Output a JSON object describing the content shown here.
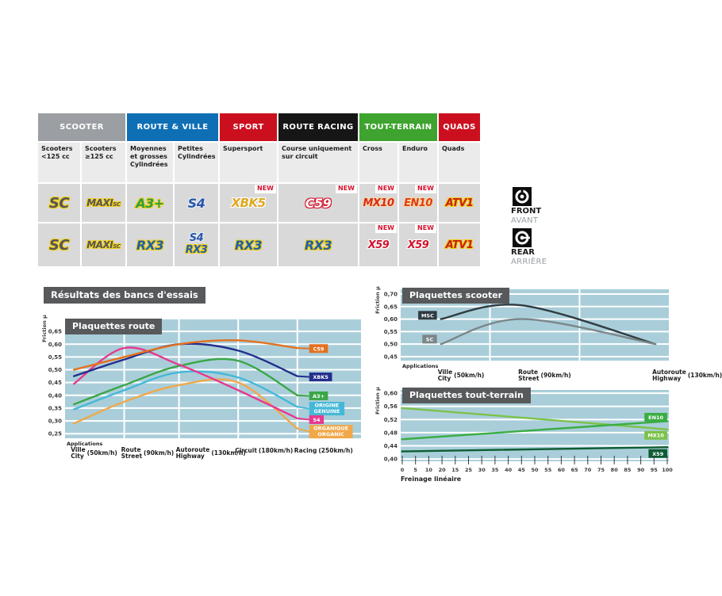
{
  "section_title": "Résultats des bancs d'essais",
  "table": {
    "new_label": "NEW",
    "groups": [
      {
        "label": "SCOOTER",
        "color": "#9b9ea3",
        "span": 2
      },
      {
        "label": "ROUTE & VILLE",
        "color": "#0e6fb5",
        "span": 2
      },
      {
        "label": "SPORT",
        "color": "#cc0f1e",
        "span": 1
      },
      {
        "label": "ROUTE RACING",
        "color": "#161616",
        "span": 1
      },
      {
        "label": "TOUT-TERRAIN",
        "color": "#3ea32f",
        "span": 2
      },
      {
        "label": "QUADS",
        "color": "#cc0f1e",
        "span": 1
      }
    ],
    "subheaders": [
      "Scooters <125 cc",
      "Scooters ≥125 cc",
      "Moyennes et grosses Cylindrées",
      "Petites Cylindrées",
      "Supersport",
      "Course uniquement sur circuit",
      "Cross",
      "Enduro",
      "Quads"
    ],
    "front_row": [
      {
        "badges": [
          {
            "text": "SC",
            "style": "sc"
          }
        ],
        "new": false
      },
      {
        "badges": [
          {
            "text": "MAXI",
            "sub": "SC",
            "style": "maxisc"
          }
        ],
        "new": false
      },
      {
        "badges": [
          {
            "text": "A3+",
            "style": "a3"
          }
        ],
        "new": false
      },
      {
        "badges": [
          {
            "text": "S4",
            "style": "s4"
          }
        ],
        "new": false
      },
      {
        "badges": [
          {
            "text": "XBK5",
            "style": "xbk5"
          }
        ],
        "new": true
      },
      {
        "badges": [
          {
            "text": "C59",
            "style": "c59"
          }
        ],
        "new": true
      },
      {
        "badges": [
          {
            "text": "MX10",
            "style": "mx10"
          }
        ],
        "new": true
      },
      {
        "badges": [
          {
            "text": "EN10",
            "style": "en10"
          }
        ],
        "new": true
      },
      {
        "badges": [
          {
            "text": "ATV1",
            "style": "atv1"
          }
        ],
        "new": false
      }
    ],
    "rear_row": [
      {
        "badges": [
          {
            "text": "SC",
            "style": "sc"
          }
        ],
        "new": false
      },
      {
        "badges": [
          {
            "text": "MAXI",
            "sub": "SC",
            "style": "maxisc"
          }
        ],
        "new": false
      },
      {
        "badges": [
          {
            "text": "RX3",
            "style": "rx3"
          }
        ],
        "new": false
      },
      {
        "badges": [
          {
            "text": "S4",
            "style": "s4s"
          },
          {
            "text": "RX3",
            "style": "rx3s"
          }
        ],
        "new": false
      },
      {
        "badges": [
          {
            "text": "RX3",
            "style": "rx3"
          }
        ],
        "new": false
      },
      {
        "badges": [
          {
            "text": "RX3",
            "style": "rx3"
          }
        ],
        "new": false
      },
      {
        "badges": [
          {
            "text": "X59",
            "style": "x59"
          }
        ],
        "new": true
      },
      {
        "badges": [
          {
            "text": "X59",
            "style": "x59"
          }
        ],
        "new": true
      },
      {
        "badges": [
          {
            "text": "ATV1",
            "style": "atv1"
          }
        ],
        "new": false
      }
    ],
    "front_icon": {
      "label": "FRONT",
      "caption": "AVANT"
    },
    "rear_icon": {
      "label": "REAR",
      "caption": "ARRIÈRE"
    }
  },
  "chart_data": [
    {
      "id": "route",
      "type": "line",
      "title": "Plaquettes route",
      "ylabel": "Friction µ",
      "yticks": [
        "0,65",
        "0,60",
        "0,55",
        "0,50",
        "0,45",
        "0,40",
        "0,35",
        "0,30",
        "0,25"
      ],
      "ylim": [
        0.232,
        0.697
      ],
      "x_axis_label": "Applications",
      "categories": [
        {
          "fr": "Ville",
          "en": "City",
          "speed": "(50km/h)"
        },
        {
          "fr": "Route",
          "en": "Street",
          "speed": "(90km/h)"
        },
        {
          "fr": "Autoroute",
          "en": "Highway",
          "speed": "(130km/h)"
        },
        {
          "fr": "Circuit",
          "en": "",
          "speed": "(180km/h)"
        },
        {
          "fr": "Racing",
          "en": "",
          "speed": "(250km/h)"
        }
      ],
      "plot_bg": "#a9ced9",
      "series": [
        {
          "name": "ORGANIQUE",
          "label_lines": [
            "ORGANIQUE",
            "ORGANIC"
          ],
          "color": "#f0a84b",
          "values": [
            0.29,
            0.375,
            0.44,
            0.45,
            0.27
          ],
          "label_y": 0.258
        },
        {
          "name": "ORIGINE",
          "label_lines": [
            "ORIGINE",
            "GENUINE"
          ],
          "color": "#45b8d8",
          "values": [
            0.345,
            0.42,
            0.49,
            0.47,
            0.355
          ],
          "label_y": 0.348
        },
        {
          "name": "A3+",
          "label_lines": [
            "A3+"
          ],
          "color": "#3aa648",
          "values": [
            0.365,
            0.44,
            0.515,
            0.535,
            0.4
          ],
          "label_y": 0.398
        },
        {
          "name": "S4",
          "label_lines": [
            "S4"
          ],
          "color": "#e6398f",
          "values": [
            0.445,
            0.585,
            0.52,
            0.42,
            0.31
          ],
          "label_y": 0.305
        },
        {
          "name": "XBK5",
          "label_lines": [
            "XBK5"
          ],
          "color": "#232e8d",
          "values": [
            0.475,
            0.54,
            0.6,
            0.575,
            0.475
          ],
          "label_y": 0.472
        },
        {
          "name": "C59",
          "label_lines": [
            "C59"
          ],
          "color": "#e4711f",
          "values": [
            0.5,
            0.55,
            0.6,
            0.615,
            0.585
          ],
          "label_y": 0.583
        }
      ]
    },
    {
      "id": "scooter",
      "type": "line",
      "title": "Plaquettes scooter",
      "ylabel": "Friction µ",
      "yticks": [
        "0,70",
        "0,65",
        "0,60",
        "0,55",
        "0,50",
        "0,45"
      ],
      "ylim": [
        0.434,
        0.719
      ],
      "x_axis_label": "Applications",
      "categories": [
        {
          "fr": "Ville",
          "en": "City",
          "speed": "(50km/h)"
        },
        {
          "fr": "Route",
          "en": "Street",
          "speed": "(90km/h)"
        },
        {
          "fr": "Autoroute",
          "en": "Highway",
          "speed": "(130km/h)"
        }
      ],
      "plot_bg": "#a9ced9",
      "series": [
        {
          "name": "MSC",
          "label_lines": [
            "MSC"
          ],
          "color": "#2f3b42",
          "values": [
            0.6,
            0.655,
            0.5
          ],
          "label_y": 0.615
        },
        {
          "name": "SC",
          "label_lines": [
            "SC"
          ],
          "color": "#7b8689",
          "values": [
            0.5,
            0.6,
            0.5
          ],
          "label_y": 0.52
        }
      ]
    },
    {
      "id": "tout-terrain",
      "type": "line",
      "title": "Plaquettes tout-terrain",
      "ylabel": "Friction µ",
      "yticks": [
        "0,60",
        "0,56",
        "0,52",
        "0,48",
        "0,44",
        "0,40"
      ],
      "ylim": [
        0.393,
        0.61
      ],
      "xticks": [
        "0",
        "5",
        "10",
        "20",
        "15",
        "25",
        "30",
        "35",
        "40",
        "45",
        "50",
        "55",
        "60",
        "65",
        "70",
        "75",
        "80",
        "85",
        "90",
        "95",
        "100"
      ],
      "xlabel": "Freinage linéaire",
      "plot_bg": "#a9ced9",
      "series": [
        {
          "name": "MX10",
          "label_lines": [
            "MX10"
          ],
          "color": "#7cc24a",
          "values": [
            0.555,
            0.49
          ],
          "label_y": 0.472
        },
        {
          "name": "EN10",
          "label_lines": [
            "EN10"
          ],
          "color": "#3aad43",
          "values": [
            0.46,
            0.515
          ],
          "label_y": 0.527
        },
        {
          "name": "X59",
          "label_lines": [
            "X59"
          ],
          "color": "#0e5c33",
          "values": [
            0.423,
            0.436
          ],
          "label_y": 0.4165
        }
      ]
    }
  ]
}
